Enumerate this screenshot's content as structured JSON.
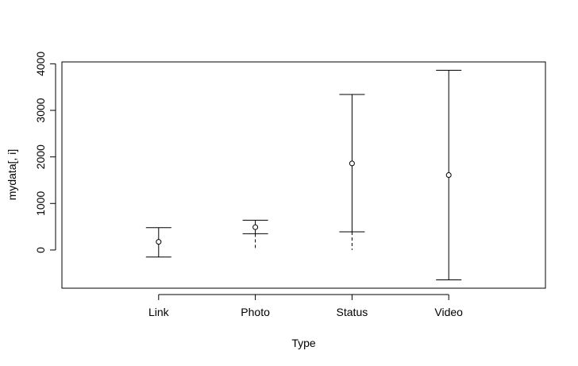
{
  "chart_data": {
    "type": "errorbar",
    "title": "",
    "xlabel": "Type",
    "ylabel": "mydata[, i]",
    "categories": [
      "Link",
      "Photo",
      "Status",
      "Video"
    ],
    "series": [
      {
        "points": [
          {
            "category": "Link",
            "mean": 175,
            "upper": 480,
            "lower": -150,
            "lower_dashed_to": null
          },
          {
            "category": "Photo",
            "mean": 490,
            "upper": 640,
            "lower": 350,
            "lower_dashed_to": 0
          },
          {
            "category": "Status",
            "mean": 1860,
            "upper": 3340,
            "lower": 390,
            "lower_dashed_to": 0
          },
          {
            "category": "Video",
            "mean": 1610,
            "upper": 3860,
            "lower": -640,
            "lower_dashed_to": null
          }
        ]
      }
    ],
    "yticks": [
      0,
      1000,
      2000,
      3000,
      4000
    ],
    "ylim": [
      -820,
      4040
    ],
    "grid": false,
    "legend": "none"
  }
}
